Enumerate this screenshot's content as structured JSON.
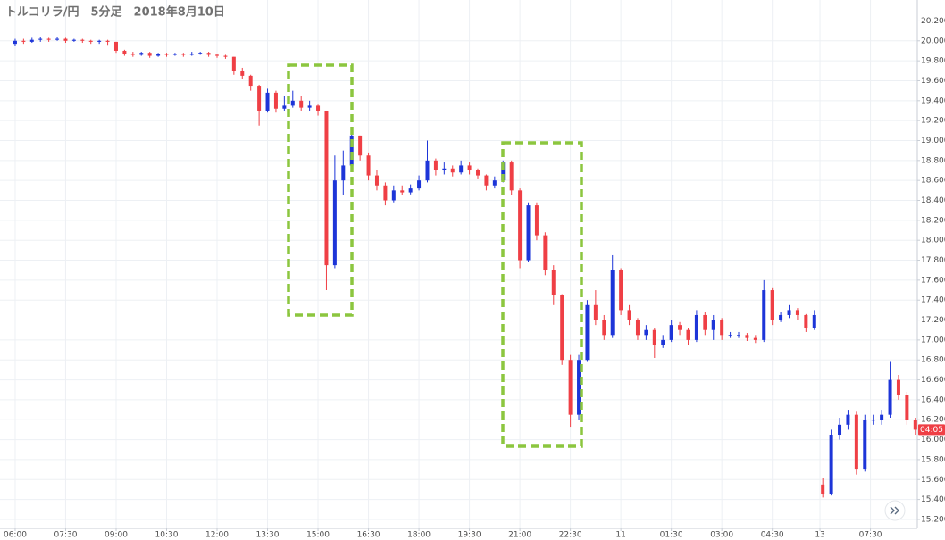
{
  "chart_data": {
    "type": "candlestick",
    "title": "トルコリラ/円　5分足　2018年8月10日",
    "countdown": "04:05",
    "up_color": "#1d35d8",
    "down_color": "#ef3f45",
    "grid": true,
    "xlim": [
      -5.4,
      321.7
    ],
    "ylim": [
      15.11,
      20.41
    ],
    "xticks": [
      {
        "value": 0,
        "label": "06:00"
      },
      {
        "value": 18,
        "label": "07:30"
      },
      {
        "value": 36,
        "label": "09:00"
      },
      {
        "value": 54,
        "label": "10:30"
      },
      {
        "value": 72,
        "label": "12:00"
      },
      {
        "value": 90,
        "label": "13:30"
      },
      {
        "value": 108,
        "label": "15:00"
      },
      {
        "value": 126,
        "label": "16:30"
      },
      {
        "value": 144,
        "label": "18:00"
      },
      {
        "value": 162,
        "label": "19:30"
      },
      {
        "value": 180,
        "label": "21:00"
      },
      {
        "value": 198,
        "label": "22:30"
      },
      {
        "value": 216,
        "label": "11"
      },
      {
        "value": 234,
        "label": "01:30"
      },
      {
        "value": 252,
        "label": "03:00"
      },
      {
        "value": 270,
        "label": "04:30"
      },
      {
        "value": 287,
        "label": "13"
      },
      {
        "value": 305,
        "label": "07:30"
      }
    ],
    "yticks": [
      {
        "value": 15.2,
        "label": "15.200"
      },
      {
        "value": 15.4,
        "label": "15.400"
      },
      {
        "value": 15.6,
        "label": "15.600"
      },
      {
        "value": 15.8,
        "label": "15.800"
      },
      {
        "value": 16.0,
        "label": "16.000"
      },
      {
        "value": 16.2,
        "label": "16.200"
      },
      {
        "value": 16.4,
        "label": "16.400"
      },
      {
        "value": 16.6,
        "label": "16.600"
      },
      {
        "value": 16.8,
        "label": "16.800"
      },
      {
        "value": 17.0,
        "label": "17.000"
      },
      {
        "value": 17.2,
        "label": "17.200"
      },
      {
        "value": 17.4,
        "label": "17.400"
      },
      {
        "value": 17.6,
        "label": "17.600"
      },
      {
        "value": 17.8,
        "label": "17.800"
      },
      {
        "value": 18.0,
        "label": "18.000"
      },
      {
        "value": 18.2,
        "label": "18.200"
      },
      {
        "value": 18.4,
        "label": "18.400"
      },
      {
        "value": 18.6,
        "label": "18.600"
      },
      {
        "value": 18.8,
        "label": "18.800"
      },
      {
        "value": 19.0,
        "label": "19.000"
      },
      {
        "value": 19.2,
        "label": "19.200"
      },
      {
        "value": 19.4,
        "label": "19.400"
      },
      {
        "value": 19.6,
        "label": "19.600"
      },
      {
        "value": 19.8,
        "label": "19.800"
      },
      {
        "value": 20.0,
        "label": "20.000"
      },
      {
        "value": 20.2,
        "label": "20.200"
      }
    ],
    "x": [
      0,
      3,
      6,
      9,
      12,
      15,
      18,
      21,
      24,
      27,
      30,
      33,
      36,
      39,
      42,
      45,
      48,
      51,
      54,
      57,
      60,
      63,
      66,
      69,
      72,
      75,
      78,
      81,
      84,
      87,
      90,
      93,
      96,
      99,
      102,
      105,
      108,
      111,
      114,
      117,
      120,
      123,
      126,
      129,
      132,
      135,
      138,
      141,
      144,
      147,
      150,
      153,
      156,
      159,
      162,
      165,
      168,
      171,
      174,
      177,
      180,
      183,
      186,
      189,
      192,
      195,
      198,
      201,
      204,
      207,
      210,
      213,
      216,
      219,
      222,
      225,
      228,
      231,
      234,
      237,
      240,
      243,
      246,
      249,
      252,
      255,
      258,
      261,
      264,
      267,
      270,
      273,
      276,
      279,
      282,
      285,
      288,
      291,
      294,
      297,
      300,
      303,
      306,
      309,
      312,
      315,
      318,
      321
    ],
    "open": [
      19.97,
      20.0,
      19.99,
      20.01,
      20.02,
      20.01,
      20.02,
      20.0,
      20.01,
      20.0,
      19.99,
      20.0,
      19.99,
      19.9,
      19.87,
      19.86,
      19.88,
      19.85,
      19.87,
      19.86,
      19.87,
      19.86,
      19.87,
      19.88,
      19.86,
      19.85,
      19.84,
      19.7,
      19.65,
      19.55,
      19.3,
      19.48,
      19.32,
      19.35,
      19.4,
      19.33,
      19.35,
      19.3,
      17.75,
      18.6,
      18.75,
      19.05,
      18.85,
      18.65,
      18.55,
      18.4,
      18.5,
      18.48,
      18.52,
      18.6,
      18.8,
      18.7,
      18.72,
      18.68,
      18.75,
      18.7,
      18.65,
      18.55,
      18.6,
      18.78,
      18.5,
      17.8,
      18.35,
      18.05,
      17.7,
      17.45,
      16.8,
      16.25,
      16.8,
      17.35,
      17.2,
      17.05,
      17.7,
      17.3,
      17.2,
      17.05,
      17.1,
      16.95,
      17.0,
      17.15,
      17.1,
      17.0,
      17.25,
      17.1,
      17.2,
      17.05,
      17.05,
      17.05,
      17.02,
      17.0,
      17.5,
      17.2,
      17.25,
      17.3,
      17.25,
      17.12,
      15.55,
      15.45,
      16.05,
      16.15,
      16.25,
      15.7,
      16.2,
      16.2,
      16.25,
      16.6,
      16.45,
      16.2
    ],
    "high": [
      20.02,
      20.02,
      20.03,
      20.04,
      20.03,
      20.04,
      20.03,
      20.02,
      20.02,
      20.01,
      20.01,
      20.01,
      19.99,
      19.91,
      19.89,
      19.89,
      19.89,
      19.88,
      19.88,
      19.88,
      19.88,
      19.89,
      19.89,
      19.89,
      19.87,
      19.86,
      19.84,
      19.73,
      19.66,
      19.56,
      19.52,
      19.5,
      19.45,
      19.5,
      19.45,
      19.4,
      19.36,
      19.3,
      18.85,
      18.9,
      19.1,
      19.05,
      18.88,
      18.7,
      18.58,
      18.55,
      18.55,
      18.56,
      18.65,
      19.0,
      18.82,
      18.78,
      18.75,
      18.8,
      18.78,
      18.72,
      18.66,
      18.64,
      18.8,
      18.8,
      18.52,
      18.38,
      18.38,
      18.08,
      17.75,
      17.46,
      16.85,
      16.85,
      17.4,
      17.5,
      17.25,
      17.85,
      17.72,
      17.35,
      17.22,
      17.15,
      17.12,
      17.05,
      17.2,
      17.18,
      17.12,
      17.3,
      17.28,
      17.25,
      17.22,
      17.08,
      17.08,
      17.07,
      17.05,
      17.6,
      17.52,
      17.28,
      17.35,
      17.32,
      17.26,
      17.3,
      15.62,
      16.1,
      16.22,
      16.3,
      16.28,
      16.25,
      16.25,
      16.3,
      16.78,
      16.65,
      16.48,
      16.22
    ],
    "low": [
      19.95,
      19.97,
      19.98,
      19.99,
      19.99,
      20.0,
      19.98,
      19.99,
      19.98,
      19.97,
      19.97,
      19.96,
      19.88,
      19.85,
      19.84,
      19.85,
      19.83,
      19.84,
      19.84,
      19.85,
      19.84,
      19.85,
      19.86,
      19.84,
      19.83,
      19.82,
      19.66,
      19.62,
      19.5,
      19.15,
      19.28,
      19.28,
      19.3,
      19.33,
      19.3,
      19.3,
      19.25,
      17.5,
      17.72,
      18.45,
      18.7,
      18.8,
      18.6,
      18.5,
      18.35,
      18.38,
      18.45,
      18.46,
      18.5,
      18.58,
      18.65,
      18.66,
      18.64,
      18.66,
      18.66,
      18.62,
      18.5,
      18.52,
      18.58,
      18.45,
      17.72,
      17.78,
      18.0,
      17.65,
      17.35,
      16.75,
      16.13,
      16.2,
      16.78,
      17.15,
      17.0,
      17.02,
      17.25,
      17.15,
      17.0,
      17.0,
      16.82,
      16.92,
      16.98,
      17.05,
      16.95,
      16.98,
      17.05,
      17.0,
      17.0,
      17.02,
      17.02,
      16.99,
      16.97,
      16.98,
      17.15,
      17.18,
      17.22,
      17.2,
      17.08,
      17.1,
      15.42,
      15.44,
      16.0,
      16.1,
      15.65,
      15.68,
      16.15,
      16.15,
      16.22,
      16.4,
      16.15,
      16.05
    ],
    "close": [
      20.0,
      19.99,
      20.01,
      20.02,
      20.01,
      20.02,
      20.0,
      20.01,
      20.0,
      19.99,
      20.0,
      19.99,
      19.9,
      19.87,
      19.86,
      19.88,
      19.85,
      19.87,
      19.86,
      19.87,
      19.86,
      19.87,
      19.88,
      19.86,
      19.85,
      19.84,
      19.7,
      19.65,
      19.55,
      19.3,
      19.48,
      19.32,
      19.35,
      19.4,
      19.33,
      19.35,
      19.3,
      17.75,
      18.6,
      18.75,
      19.05,
      18.85,
      18.65,
      18.55,
      18.4,
      18.5,
      18.48,
      18.52,
      18.6,
      18.8,
      18.7,
      18.72,
      18.68,
      18.75,
      18.7,
      18.65,
      18.55,
      18.6,
      18.78,
      18.5,
      17.8,
      18.35,
      18.05,
      17.7,
      17.45,
      16.8,
      16.25,
      16.8,
      17.35,
      17.2,
      17.05,
      17.7,
      17.3,
      17.2,
      17.05,
      17.1,
      16.95,
      17.0,
      17.15,
      17.1,
      17.0,
      17.25,
      17.1,
      17.2,
      17.05,
      17.05,
      17.05,
      17.02,
      17.0,
      17.5,
      17.2,
      17.25,
      17.3,
      17.25,
      17.12,
      17.25,
      15.45,
      16.05,
      16.15,
      16.25,
      15.7,
      16.2,
      16.2,
      16.25,
      16.6,
      16.45,
      16.2,
      16.1
    ]
  }
}
